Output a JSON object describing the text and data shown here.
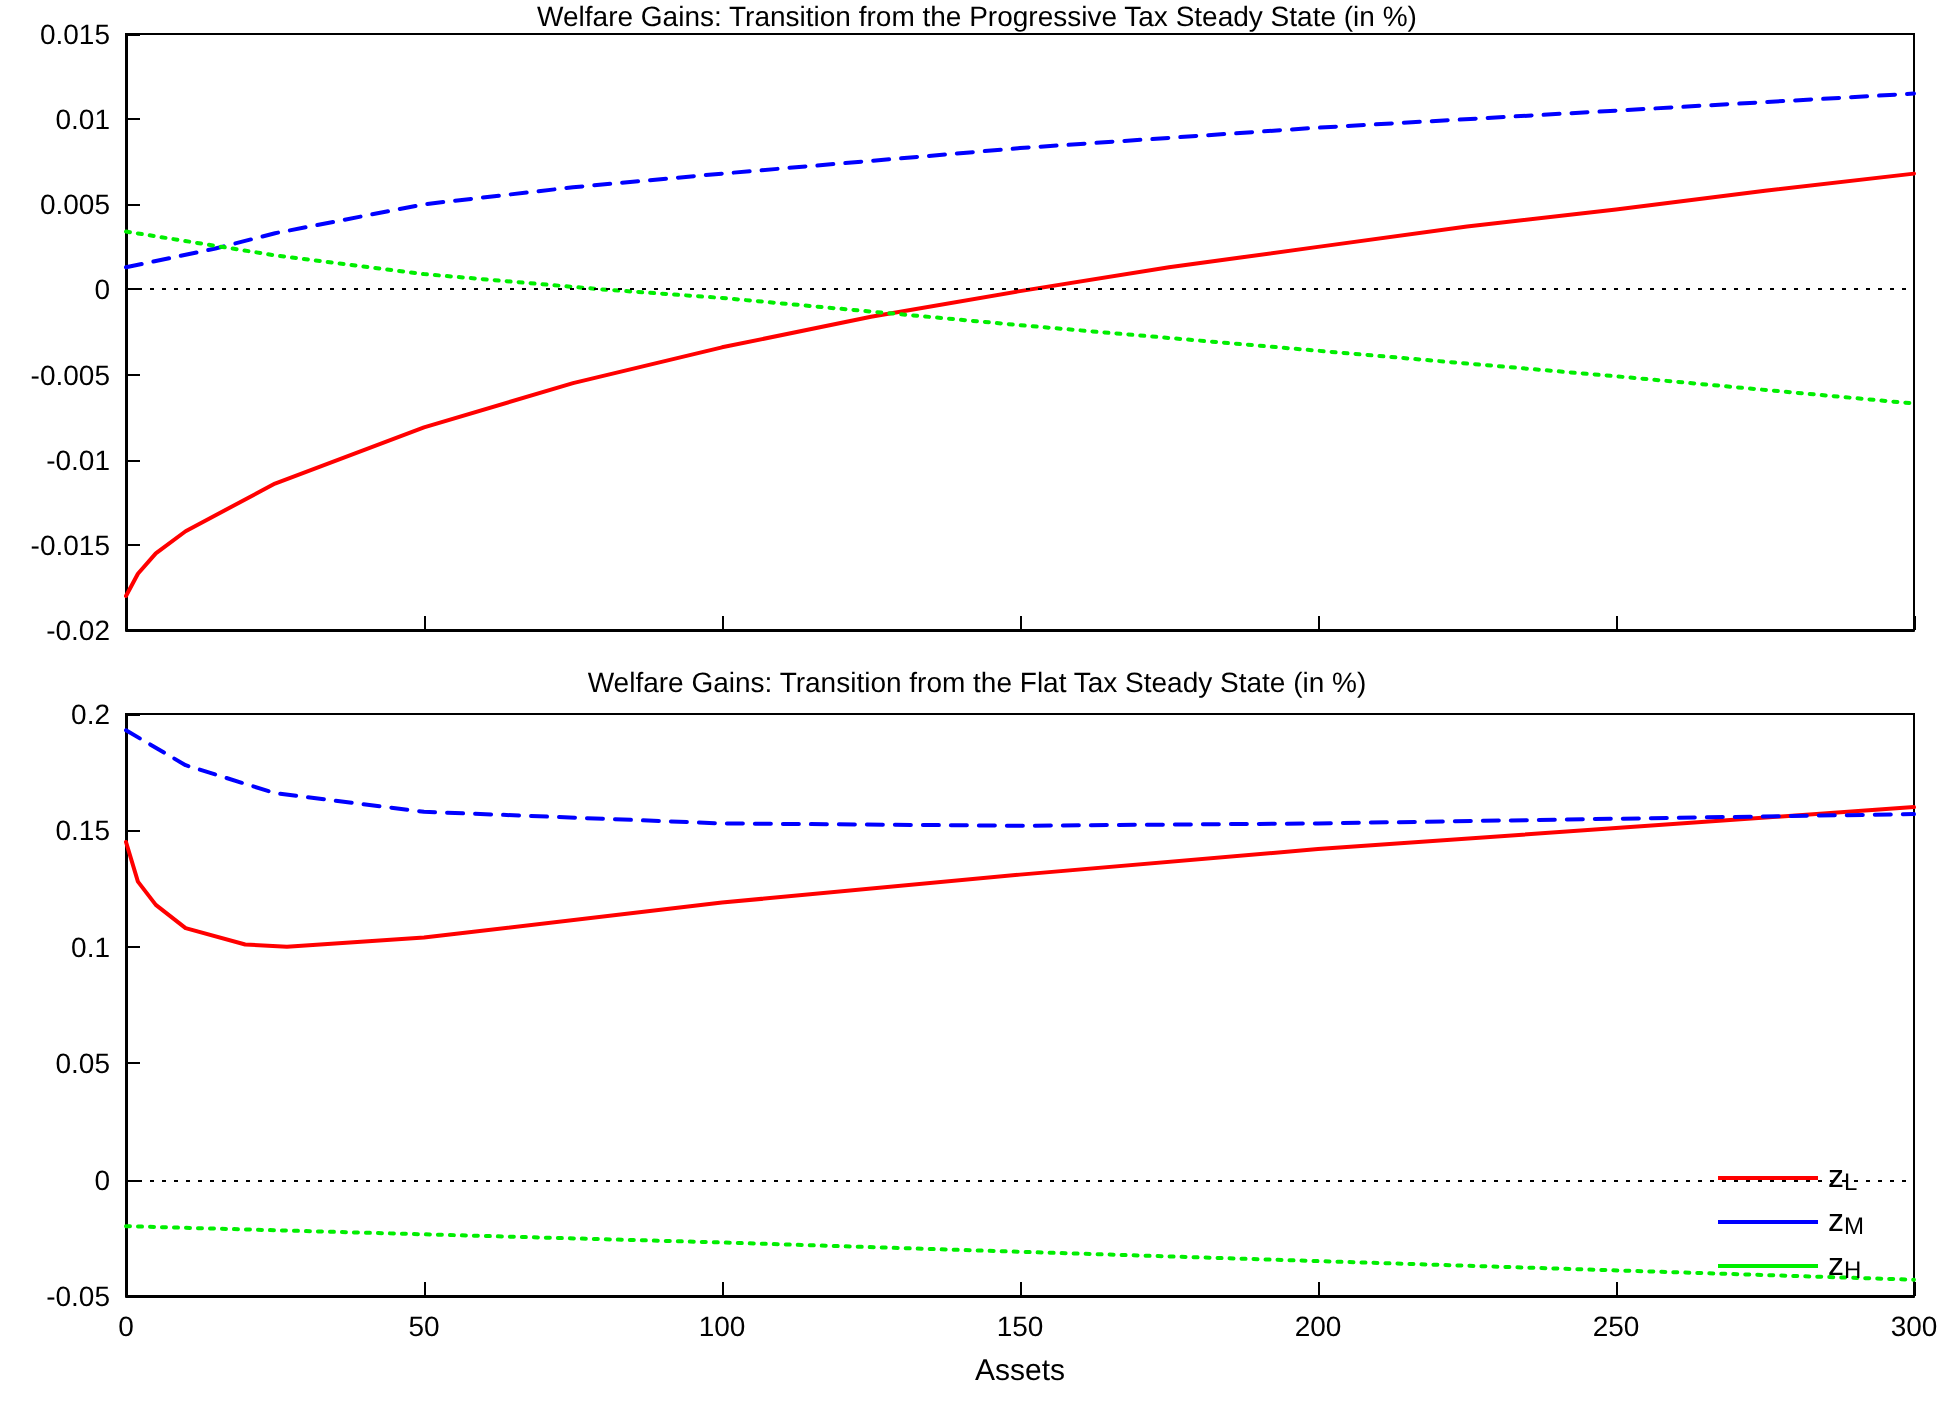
{
  "chart_data": [
    {
      "type": "line",
      "title": "Welfare Gains: Transition from the Progressive Tax Steady State (in %)",
      "xlim": [
        0,
        300
      ],
      "xticks": [
        0,
        50,
        100,
        150,
        200,
        250,
        300
      ],
      "ylim": [
        -0.02,
        0.015
      ],
      "yticks": [
        -0.02,
        -0.015,
        -0.01,
        -0.005,
        0,
        0.005,
        0.01,
        0.015
      ],
      "tick_labels": "y",
      "grid": false,
      "legend": false,
      "marker": "none",
      "ref_lines": [
        {
          "axis": "y",
          "value": 0,
          "label": null,
          "color": "#000000",
          "line_style": "dotted"
        }
      ],
      "series": [
        {
          "color": "#ff0000",
          "line_style": "solid",
          "x": [
            0,
            2,
            5,
            10,
            25,
            50,
            75,
            100,
            125,
            150,
            175,
            200,
            225,
            250,
            275,
            300
          ],
          "values": [
            -0.018,
            -0.0167,
            -0.0155,
            -0.0142,
            -0.0114,
            -0.0081,
            -0.0055,
            -0.0034,
            -0.0016,
            -0.0001,
            0.0013,
            0.0025,
            0.0037,
            0.0047,
            0.0058,
            0.0068
          ]
        },
        {
          "color": "#0000ff",
          "line_style": "dashed",
          "x": [
            0,
            15,
            25,
            50,
            75,
            100,
            150,
            200,
            250,
            300
          ],
          "values": [
            0.0013,
            0.0024,
            0.0033,
            0.005,
            0.006,
            0.0068,
            0.0083,
            0.0095,
            0.0105,
            0.0115
          ]
        },
        {
          "color": "#00ee00",
          "line_style": "dotted",
          "x": [
            0,
            25,
            50,
            80,
            100,
            150,
            200,
            250,
            300
          ],
          "values": [
            0.0034,
            0.002,
            0.0009,
            0,
            -0.0005,
            -0.0021,
            -0.0036,
            -0.0051,
            -0.0067
          ]
        }
      ]
    },
    {
      "type": "line",
      "title": "Welfare Gains: Transition from the Flat Tax Steady State (in %)",
      "xlabel": "Assets",
      "xlim": [
        0,
        300
      ],
      "xticks": [
        0,
        50,
        100,
        150,
        200,
        250,
        300
      ],
      "ylim": [
        -0.05,
        0.2
      ],
      "yticks": [
        -0.05,
        0,
        0.05,
        0.1,
        0.15,
        0.2
      ],
      "grid": false,
      "legend": "bottom right",
      "marker": "none",
      "ref_lines": [
        {
          "axis": "y",
          "value": 0,
          "label": null,
          "color": "#000000",
          "line_style": "dotted"
        }
      ],
      "series": [
        {
          "name": "z$_{L}$",
          "color": "#ff0000",
          "line_style": "solid",
          "x": [
            0,
            2,
            5,
            10,
            20,
            27,
            50,
            100,
            150,
            200,
            250,
            300
          ],
          "values": [
            0.145,
            0.128,
            0.118,
            0.108,
            0.101,
            0.1,
            0.104,
            0.119,
            0.131,
            0.142,
            0.151,
            0.16
          ]
        },
        {
          "name": "z$_{M}$",
          "color": "#0000ff",
          "line_style": "dashed",
          "x": [
            0,
            10,
            25,
            50,
            100,
            150,
            200,
            250,
            300
          ],
          "values": [
            0.193,
            0.178,
            0.166,
            0.158,
            0.153,
            0.152,
            0.153,
            0.155,
            0.157
          ]
        },
        {
          "name": "z$_{H}$",
          "color": "#00ee00",
          "line_style": "dotted",
          "x": [
            0,
            100,
            200,
            300
          ],
          "values": [
            -0.02,
            -0.027,
            -0.035,
            -0.043
          ]
        }
      ]
    }
  ]
}
